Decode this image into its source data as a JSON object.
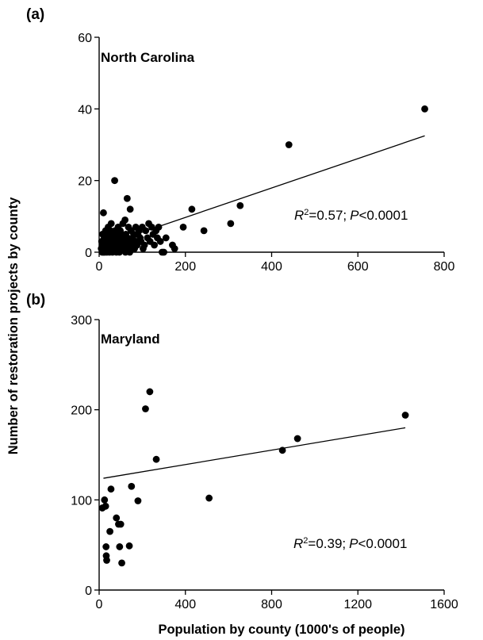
{
  "figure": {
    "ylabel": "Number of restoration projects by county",
    "xlabel": "Population by county (1000's of people)"
  },
  "chart_data": [
    {
      "type": "scatter",
      "panel_label": "(a)",
      "title": "North Carolina",
      "stat_r2_text": "=0.57;",
      "stat_p_text": "<0.0001",
      "xlim": [
        0,
        800
      ],
      "ylim": [
        0,
        60
      ],
      "xticks": [
        0,
        200,
        400,
        600,
        800
      ],
      "yticks": [
        0,
        20,
        40,
        60
      ],
      "grid": false,
      "trendline": [
        [
          0,
          1.5
        ],
        [
          755,
          32.5
        ]
      ],
      "points": [
        [
          5,
          1
        ],
        [
          6,
          3
        ],
        [
          7,
          0
        ],
        [
          8,
          2
        ],
        [
          8,
          5
        ],
        [
          9,
          1
        ],
        [
          10,
          0
        ],
        [
          10,
          11
        ],
        [
          11,
          2
        ],
        [
          12,
          4
        ],
        [
          13,
          0
        ],
        [
          14,
          2
        ],
        [
          15,
          6
        ],
        [
          16,
          1
        ],
        [
          17,
          3
        ],
        [
          18,
          0
        ],
        [
          19,
          5
        ],
        [
          20,
          2
        ],
        [
          21,
          7
        ],
        [
          22,
          1
        ],
        [
          23,
          4
        ],
        [
          24,
          0
        ],
        [
          25,
          3
        ],
        [
          26,
          6
        ],
        [
          27,
          2
        ],
        [
          28,
          8
        ],
        [
          29,
          1
        ],
        [
          30,
          4
        ],
        [
          31,
          0
        ],
        [
          32,
          2
        ],
        [
          33,
          5
        ],
        [
          34,
          3
        ],
        [
          35,
          1
        ],
        [
          36,
          20
        ],
        [
          37,
          6
        ],
        [
          38,
          2
        ],
        [
          39,
          4
        ],
        [
          40,
          0
        ],
        [
          41,
          3
        ],
        [
          42,
          5
        ],
        [
          43,
          1
        ],
        [
          44,
          7
        ],
        [
          45,
          2
        ],
        [
          46,
          4
        ],
        [
          47,
          0
        ],
        [
          48,
          3
        ],
        [
          49,
          6
        ],
        [
          50,
          1
        ],
        [
          52,
          5
        ],
        [
          54,
          2
        ],
        [
          55,
          8
        ],
        [
          56,
          4
        ],
        [
          57,
          1
        ],
        [
          58,
          3
        ],
        [
          60,
          9
        ],
        [
          61,
          0
        ],
        [
          62,
          5
        ],
        [
          63,
          2
        ],
        [
          65,
          15
        ],
        [
          66,
          4
        ],
        [
          67,
          1
        ],
        [
          68,
          7
        ],
        [
          70,
          3
        ],
        [
          71,
          0
        ],
        [
          72,
          12
        ],
        [
          74,
          6
        ],
        [
          76,
          2
        ],
        [
          78,
          4
        ],
        [
          80,
          5
        ],
        [
          82,
          1
        ],
        [
          84,
          3
        ],
        [
          85,
          7
        ],
        [
          88,
          2
        ],
        [
          90,
          5
        ],
        [
          92,
          6
        ],
        [
          95,
          4
        ],
        [
          97,
          3
        ],
        [
          100,
          7
        ],
        [
          102,
          1
        ],
        [
          105,
          2
        ],
        [
          108,
          6
        ],
        [
          112,
          4
        ],
        [
          115,
          8
        ],
        [
          118,
          3
        ],
        [
          122,
          7
        ],
        [
          125,
          5
        ],
        [
          128,
          2
        ],
        [
          132,
          6
        ],
        [
          135,
          4
        ],
        [
          138,
          7
        ],
        [
          142,
          3
        ],
        [
          146,
          0
        ],
        [
          150,
          0
        ],
        [
          155,
          4
        ],
        [
          170,
          2
        ],
        [
          175,
          1
        ],
        [
          195,
          7
        ],
        [
          215,
          12
        ],
        [
          243,
          6
        ],
        [
          305,
          8
        ],
        [
          327,
          13
        ],
        [
          440,
          30
        ],
        [
          755,
          40
        ]
      ]
    },
    {
      "type": "scatter",
      "panel_label": "(b)",
      "title": "Maryland",
      "stat_r2_text": "=0.39;",
      "stat_p_text": "<0.0001",
      "xlim": [
        0,
        1600
      ],
      "ylim": [
        0,
        300
      ],
      "xticks": [
        0,
        400,
        800,
        1200,
        1600
      ],
      "yticks": [
        0,
        100,
        200,
        300
      ],
      "grid": false,
      "trendline": [
        [
          20,
          124
        ],
        [
          1420,
          180
        ]
      ],
      "points": [
        [
          15,
          91
        ],
        [
          25,
          100
        ],
        [
          30,
          93
        ],
        [
          32,
          48
        ],
        [
          33,
          38
        ],
        [
          35,
          33
        ],
        [
          50,
          65
        ],
        [
          55,
          112
        ],
        [
          80,
          80
        ],
        [
          90,
          73
        ],
        [
          95,
          48
        ],
        [
          100,
          73
        ],
        [
          105,
          30
        ],
        [
          140,
          49
        ],
        [
          150,
          115
        ],
        [
          180,
          99
        ],
        [
          215,
          201
        ],
        [
          235,
          220
        ],
        [
          265,
          145
        ],
        [
          510,
          102
        ],
        [
          850,
          155
        ],
        [
          920,
          168
        ],
        [
          1420,
          194
        ]
      ]
    }
  ]
}
